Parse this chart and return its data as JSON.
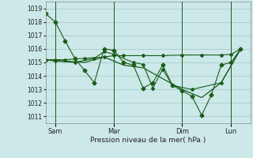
{
  "title": "Pression niveau de la mer( hPa )",
  "background_color": "#cce8e8",
  "grid_color": "#aacccc",
  "line_color": "#1a5c1a",
  "ylim": [
    1010.5,
    1019.5
  ],
  "yticks": [
    1011,
    1012,
    1013,
    1014,
    1015,
    1016,
    1017,
    1018,
    1019
  ],
  "day_labels": [
    "Sam",
    "Mar",
    "Dim",
    "Lun"
  ],
  "day_positions": [
    0.5,
    3.5,
    7.0,
    9.5
  ],
  "xlim": [
    0.0,
    10.5
  ],
  "series1": {
    "x": [
      0.0,
      0.5,
      1.0,
      1.5,
      2.0,
      2.5,
      3.0,
      3.5,
      4.0,
      4.5,
      5.0,
      5.5,
      6.0,
      6.5,
      7.0,
      7.5,
      8.0,
      8.5,
      9.0,
      9.5,
      10.0
    ],
    "y": [
      1018.6,
      1018.0,
      1016.6,
      1015.3,
      1014.4,
      1013.5,
      1016.0,
      1015.9,
      1015.0,
      1014.8,
      1013.1,
      1013.5,
      1014.8,
      1013.3,
      1012.9,
      1012.5,
      1011.1,
      1012.6,
      1014.8,
      1015.0,
      1016.0
    ]
  },
  "series2": {
    "x": [
      0.0,
      0.5,
      1.0,
      2.0,
      3.0,
      3.5,
      4.0,
      5.0,
      6.0,
      7.0,
      8.0,
      9.0,
      9.5,
      10.0
    ],
    "y": [
      1015.2,
      1015.2,
      1015.2,
      1015.3,
      1015.4,
      1015.5,
      1015.5,
      1015.5,
      1015.5,
      1015.55,
      1015.55,
      1015.55,
      1015.6,
      1016.0
    ]
  },
  "series3": {
    "x": [
      0.0,
      0.5,
      1.5,
      2.5,
      3.0,
      3.5,
      4.5,
      5.0,
      5.5,
      6.0,
      6.5,
      7.5,
      9.0,
      10.0
    ],
    "y": [
      1015.2,
      1015.1,
      1015.0,
      1015.3,
      1015.8,
      1015.6,
      1015.0,
      1014.85,
      1013.1,
      1014.5,
      1013.3,
      1013.0,
      1013.5,
      1016.0
    ]
  },
  "series4": {
    "x": [
      0.0,
      1.0,
      2.0,
      3.0,
      4.0,
      5.0,
      6.0,
      7.0,
      8.0,
      9.0,
      10.0
    ],
    "y": [
      1015.2,
      1015.1,
      1015.0,
      1015.4,
      1014.8,
      1014.6,
      1013.8,
      1013.0,
      1012.4,
      1013.5,
      1016.0
    ]
  },
  "vlines_x": [
    0.5,
    3.5,
    7.0,
    9.5
  ]
}
